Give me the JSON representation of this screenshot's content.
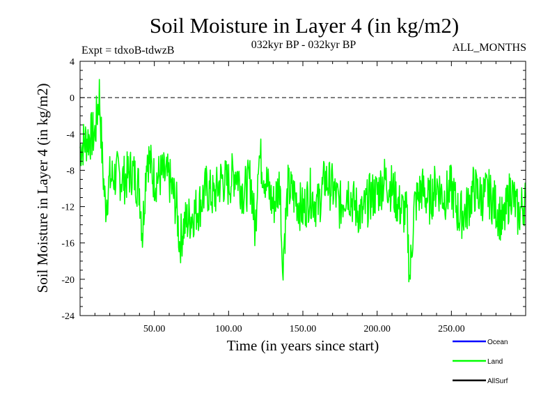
{
  "chart_data": {
    "type": "line",
    "title": "Soil Moisture in Layer 4 (in kg/m2)",
    "subtitle_left": "Expt = tdxoB-tdwzB",
    "subtitle_center": "032kyr BP - 032kyr BP",
    "subtitle_right": "ALL_MONTHS",
    "xlabel": "Time (in years since start)",
    "ylabel": "Soil Moisture in Layer 4 (in kg/m2)",
    "xlim": [
      0,
      300
    ],
    "ylim": [
      -24,
      4
    ],
    "xticks": [
      50,
      100,
      150,
      200,
      250
    ],
    "xtick_labels": [
      "50.00",
      "100.00",
      "150.00",
      "200.00",
      "250.00"
    ],
    "yticks": [
      4,
      0,
      -4,
      -8,
      -12,
      -16,
      -20,
      -24
    ],
    "ytick_labels": [
      "4",
      "0",
      "-4",
      "-8",
      "-12",
      "-16",
      "-20",
      "-24"
    ],
    "reference_line": 0,
    "legend_placement": "bottom-right",
    "legend": [
      {
        "name": "Ocean",
        "color": "#0000ff"
      },
      {
        "name": "Land",
        "color": "#00ff00"
      },
      {
        "name": "AllSurf",
        "color": "#000000"
      }
    ],
    "series": [
      {
        "name": "Land",
        "color": "#00ff00",
        "x": [
          0,
          5,
          10,
          13,
          15,
          17,
          20,
          25,
          30,
          35,
          40,
          42,
          45,
          50,
          55,
          60,
          65,
          67,
          70,
          75,
          80,
          85,
          90,
          95,
          100,
          105,
          110,
          115,
          118,
          120,
          125,
          130,
          135,
          136,
          140,
          145,
          150,
          155,
          160,
          165,
          170,
          175,
          180,
          185,
          190,
          195,
          200,
          205,
          210,
          215,
          220,
          222,
          225,
          230,
          235,
          240,
          245,
          250,
          255,
          260,
          265,
          270,
          275,
          280,
          285,
          290,
          295,
          300
        ],
        "values": [
          -5.5,
          -4.5,
          -4,
          0.5,
          -7,
          -12,
          -9,
          -8.5,
          -9,
          -8,
          -10,
          -15,
          -6,
          -9,
          -8.5,
          -9,
          -12,
          -16,
          -14,
          -13,
          -12,
          -10,
          -11,
          -9,
          -9.5,
          -8,
          -10.5,
          -9,
          -15,
          -6,
          -9,
          -12,
          -9,
          -19,
          -10,
          -11,
          -12.5,
          -10.5,
          -12,
          -9,
          -10,
          -12,
          -10,
          -12,
          -13,
          -11,
          -10.5,
          -9,
          -10,
          -12,
          -13,
          -20,
          -12,
          -10,
          -11.5,
          -9.5,
          -11,
          -10,
          -13,
          -12.5,
          -10,
          -11,
          -10.5,
          -12,
          -14,
          -10,
          -13,
          -11
        ]
      }
    ]
  }
}
